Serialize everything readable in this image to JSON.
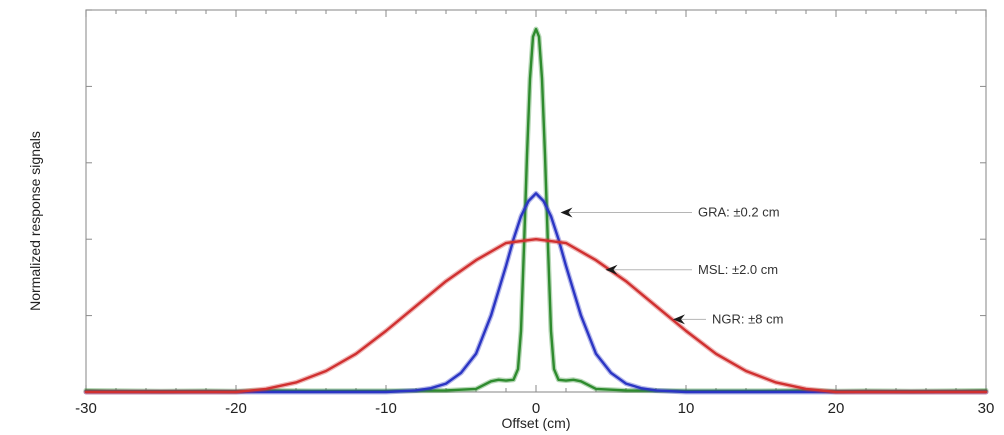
{
  "chart_data": {
    "type": "line",
    "title": "",
    "xlabel": "Offset (cm)",
    "ylabel": "Normalized response signals",
    "xlim": [
      -30,
      30
    ],
    "ylim": [
      0,
      1
    ],
    "xticks": [
      -30,
      -20,
      -10,
      0,
      10,
      20,
      30
    ],
    "xtick_labels": [
      "-30",
      "-20",
      "-10",
      "0",
      "10",
      "20",
      "30"
    ],
    "yticks": [
      0,
      0.2,
      0.4,
      0.6,
      0.8,
      1.0
    ],
    "grid": false,
    "legend": "none",
    "series": [
      {
        "color": "#2e8b2e",
        "x": [
          -30,
          -25,
          -22,
          -20,
          -18,
          -15,
          -10,
          -6,
          -4,
          -3,
          -2.5,
          -2,
          -1.5,
          -1.2,
          -1.0,
          -0.8,
          -0.6,
          -0.4,
          -0.2,
          0,
          0.2,
          0.4,
          0.6,
          0.8,
          1.0,
          1.2,
          1.5,
          2,
          2.5,
          3,
          4,
          6,
          10,
          15,
          18,
          20,
          22,
          25,
          30
        ],
        "y": [
          0.004,
          0.002,
          0.003,
          0.002,
          0.004,
          0.003,
          0.003,
          0.004,
          0.008,
          0.028,
          0.032,
          0.03,
          0.032,
          0.06,
          0.16,
          0.38,
          0.62,
          0.82,
          0.93,
          0.95,
          0.93,
          0.82,
          0.62,
          0.38,
          0.16,
          0.06,
          0.032,
          0.03,
          0.032,
          0.028,
          0.008,
          0.004,
          0.003,
          0.003,
          0.004,
          0.002,
          0.003,
          0.002,
          0.004
        ]
      },
      {
        "color": "#2b35c4",
        "x": [
          -30,
          -10,
          -8,
          -7,
          -6,
          -5,
          -4,
          -3,
          -2,
          -1.5,
          -1,
          -0.5,
          0,
          0.5,
          1,
          1.5,
          2,
          3,
          4,
          5,
          6,
          7,
          8,
          10,
          30
        ],
        "y": [
          0.0,
          0.0,
          0.004,
          0.01,
          0.022,
          0.05,
          0.1,
          0.2,
          0.33,
          0.4,
          0.46,
          0.5,
          0.52,
          0.5,
          0.46,
          0.4,
          0.33,
          0.2,
          0.1,
          0.05,
          0.022,
          0.01,
          0.004,
          0.0,
          0.0
        ]
      },
      {
        "color": "#d03030",
        "x": [
          -30,
          -20,
          -18,
          -16,
          -14,
          -12,
          -10,
          -8,
          -6,
          -4,
          -2,
          0,
          2,
          4,
          6,
          8,
          10,
          12,
          14,
          16,
          18,
          20,
          30
        ],
        "y": [
          0.0,
          0.0,
          0.008,
          0.025,
          0.055,
          0.1,
          0.16,
          0.225,
          0.29,
          0.345,
          0.39,
          0.4,
          0.39,
          0.345,
          0.29,
          0.225,
          0.16,
          0.1,
          0.055,
          0.025,
          0.008,
          0.0,
          0.0
        ]
      }
    ],
    "annotations": [
      {
        "text": "GRA: ±0.2 cm",
        "x": 1.5,
        "y": 0.47
      },
      {
        "text": "MSL: ±2.0 cm",
        "x": 4.5,
        "y": 0.32
      },
      {
        "text": "NGR: ±8 cm",
        "x": 9.0,
        "y": 0.19
      }
    ]
  }
}
